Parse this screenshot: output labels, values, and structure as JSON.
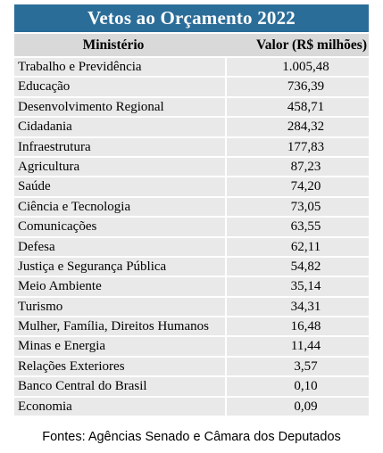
{
  "title": "Vetos ao Orçamento 2022",
  "headers": {
    "ministerio": "Ministério",
    "valor": "Valor (R$ milhões)"
  },
  "rows": [
    {
      "ministerio": "Trabalho e Previdência",
      "valor": "1.005,48"
    },
    {
      "ministerio": "Educação",
      "valor": "736,39"
    },
    {
      "ministerio": "Desenvolvimento Regional",
      "valor": "458,71"
    },
    {
      "ministerio": "Cidadania",
      "valor": "284,32"
    },
    {
      "ministerio": "Infraestrutura",
      "valor": "177,83"
    },
    {
      "ministerio": "Agricultura",
      "valor": "87,23"
    },
    {
      "ministerio": "Saúde",
      "valor": "74,20"
    },
    {
      "ministerio": "Ciência e Tecnologia",
      "valor": "73,05"
    },
    {
      "ministerio": "Comunicações",
      "valor": "63,55"
    },
    {
      "ministerio": "Defesa",
      "valor": "62,11"
    },
    {
      "ministerio": "Justiça e Segurança Pública",
      "valor": "54,82"
    },
    {
      "ministerio": "Meio Ambiente",
      "valor": "35,14"
    },
    {
      "ministerio": "Turismo",
      "valor": "34,31"
    },
    {
      "ministerio": "Mulher, Família, Direitos Humanos",
      "valor": "16,48"
    },
    {
      "ministerio": "Minas e Energia",
      "valor": "11,44"
    },
    {
      "ministerio": "Relações Exteriores",
      "valor": "3,57"
    },
    {
      "ministerio": "Banco Central do Brasil",
      "valor": "0,10"
    },
    {
      "ministerio": "Economia",
      "valor": "0,09"
    }
  ],
  "source": "Fontes: Agências Senado e Câmara dos Deputados",
  "colors": {
    "title_bg": "#2b6d99",
    "header_bg": "#d9d9d9",
    "row_bg": "#e9e9e9"
  }
}
